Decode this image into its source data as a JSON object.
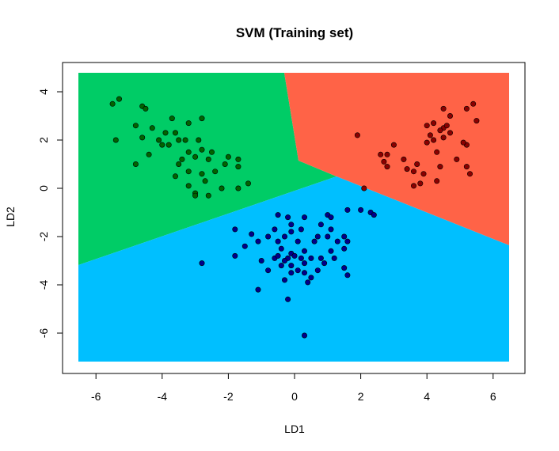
{
  "chart_data": {
    "type": "scatter",
    "title": "SVM (Training set)",
    "xlabel": "LD1",
    "ylabel": "LD2",
    "xlim": [
      -6.5,
      6.5
    ],
    "ylim": [
      -7.2,
      4.75
    ],
    "xticks": [
      -6,
      -4,
      -2,
      0,
      2,
      4,
      6
    ],
    "yticks": [
      4,
      2,
      0,
      -2,
      -4,
      -6
    ],
    "tick_labels_x": [
      "-6",
      "-4",
      "-2",
      "0",
      "2",
      "4",
      "6"
    ],
    "tick_labels_y": [
      "4",
      "2",
      "0",
      "-2",
      "-4",
      "-6"
    ],
    "grid": false,
    "regions": [
      {
        "class": "green",
        "color": "#00CC66"
      },
      {
        "class": "red",
        "color": "#FF6347"
      },
      {
        "class": "blue",
        "color": "#00BFFF"
      }
    ],
    "series": [
      {
        "class": "green",
        "color": "#006400",
        "points": [
          [
            -5.5,
            3.5
          ],
          [
            -5.3,
            3.7
          ],
          [
            -4.6,
            3.4
          ],
          [
            -4.5,
            3.3
          ],
          [
            -3.7,
            2.9
          ],
          [
            -2.8,
            2.9
          ],
          [
            -3.2,
            2.7
          ],
          [
            -4.8,
            2.6
          ],
          [
            -4.3,
            2.5
          ],
          [
            -3.9,
            2.3
          ],
          [
            -3.6,
            2.3
          ],
          [
            -5.4,
            2.0
          ],
          [
            -4.6,
            2.1
          ],
          [
            -4.1,
            2.0
          ],
          [
            -3.5,
            2.0
          ],
          [
            -3.3,
            2.0
          ],
          [
            -2.9,
            2.0
          ],
          [
            -4.0,
            1.8
          ],
          [
            -3.8,
            1.8
          ],
          [
            -3.2,
            1.5
          ],
          [
            -2.8,
            1.6
          ],
          [
            -2.5,
            1.5
          ],
          [
            -2.0,
            1.3
          ],
          [
            -4.4,
            1.4
          ],
          [
            -3.4,
            1.2
          ],
          [
            -3.0,
            1.3
          ],
          [
            -2.6,
            1.2
          ],
          [
            -1.7,
            1.2
          ],
          [
            -4.8,
            1.0
          ],
          [
            -3.5,
            1.0
          ],
          [
            -2.1,
            1.0
          ],
          [
            -1.7,
            0.9
          ],
          [
            -3.2,
            0.7
          ],
          [
            -2.8,
            0.6
          ],
          [
            -2.4,
            0.7
          ],
          [
            -3.6,
            0.5
          ],
          [
            -1.4,
            0.2
          ],
          [
            -2.7,
            0.3
          ],
          [
            -3.2,
            0.1
          ],
          [
            -1.7,
            0.0
          ],
          [
            -2.2,
            0.0
          ],
          [
            -3.0,
            -0.2
          ],
          [
            -2.6,
            -0.3
          ],
          [
            -3.0,
            -0.3
          ]
        ]
      },
      {
        "class": "red",
        "color": "#8B0000",
        "points": [
          [
            5.4,
            3.5
          ],
          [
            4.5,
            3.3
          ],
          [
            5.2,
            3.3
          ],
          [
            4.7,
            3.0
          ],
          [
            4.0,
            2.6
          ],
          [
            4.2,
            2.7
          ],
          [
            4.5,
            2.5
          ],
          [
            4.4,
            2.4
          ],
          [
            4.6,
            2.6
          ],
          [
            5.5,
            2.8
          ],
          [
            4.1,
            2.2
          ],
          [
            4.5,
            2.1
          ],
          [
            4.2,
            2.0
          ],
          [
            1.9,
            2.2
          ],
          [
            4.7,
            2.3
          ],
          [
            4.0,
            1.9
          ],
          [
            3.0,
            1.8
          ],
          [
            5.2,
            1.8
          ],
          [
            5.1,
            1.9
          ],
          [
            4.3,
            1.5
          ],
          [
            2.6,
            1.4
          ],
          [
            2.8,
            1.4
          ],
          [
            3.3,
            1.2
          ],
          [
            4.9,
            1.2
          ],
          [
            2.7,
            1.1
          ],
          [
            3.7,
            1.0
          ],
          [
            2.8,
            0.9
          ],
          [
            4.4,
            0.9
          ],
          [
            3.4,
            0.8
          ],
          [
            5.2,
            0.9
          ],
          [
            3.6,
            0.7
          ],
          [
            3.9,
            0.6
          ],
          [
            5.3,
            0.6
          ],
          [
            4.3,
            0.3
          ],
          [
            3.8,
            0.2
          ],
          [
            3.6,
            0.1
          ],
          [
            2.1,
            0.0
          ]
        ]
      },
      {
        "class": "blue",
        "color": "#00008B",
        "points": [
          [
            -0.5,
            -1.1
          ],
          [
            -0.2,
            -1.2
          ],
          [
            0.3,
            -1.2
          ],
          [
            1.0,
            -1.1
          ],
          [
            1.1,
            -1.2
          ],
          [
            1.6,
            -0.9
          ],
          [
            2.0,
            -0.9
          ],
          [
            2.3,
            -1.0
          ],
          [
            2.4,
            -1.1
          ],
          [
            -0.1,
            -1.5
          ],
          [
            0.8,
            -1.5
          ],
          [
            -0.6,
            -1.7
          ],
          [
            -0.1,
            -1.8
          ],
          [
            -1.8,
            -1.7
          ],
          [
            0.2,
            -1.7
          ],
          [
            1.1,
            -1.7
          ],
          [
            -1.3,
            -1.9
          ],
          [
            -0.8,
            -2.0
          ],
          [
            -0.3,
            -2.0
          ],
          [
            0.7,
            -2.0
          ],
          [
            1.0,
            -2.0
          ],
          [
            1.5,
            -2.0
          ],
          [
            -1.1,
            -2.2
          ],
          [
            -0.5,
            -2.2
          ],
          [
            0.1,
            -2.2
          ],
          [
            0.6,
            -2.2
          ],
          [
            1.3,
            -2.2
          ],
          [
            1.6,
            -2.2
          ],
          [
            -1.5,
            -2.4
          ],
          [
            -0.4,
            -2.5
          ],
          [
            0.3,
            -2.6
          ],
          [
            1.1,
            -2.6
          ],
          [
            1.5,
            -2.5
          ],
          [
            -0.1,
            -2.7
          ],
          [
            0.0,
            -2.8
          ],
          [
            0.2,
            -2.9
          ],
          [
            -0.6,
            -2.9
          ],
          [
            -0.5,
            -2.8
          ],
          [
            -0.2,
            -2.9
          ],
          [
            0.5,
            -2.9
          ],
          [
            0.8,
            -2.9
          ],
          [
            1.2,
            -2.9
          ],
          [
            -1.8,
            -2.8
          ],
          [
            -1.0,
            -3.0
          ],
          [
            -0.3,
            -3.0
          ],
          [
            0.3,
            -3.1
          ],
          [
            0.9,
            -3.1
          ],
          [
            -0.4,
            -3.2
          ],
          [
            -0.1,
            -3.2
          ],
          [
            1.5,
            -3.3
          ],
          [
            -2.8,
            -3.1
          ],
          [
            -0.8,
            -3.4
          ],
          [
            -0.1,
            -3.5
          ],
          [
            0.1,
            -3.4
          ],
          [
            0.3,
            -3.5
          ],
          [
            0.7,
            -3.4
          ],
          [
            1.6,
            -3.6
          ],
          [
            0.5,
            -3.7
          ],
          [
            -0.3,
            -3.8
          ],
          [
            0.4,
            -3.9
          ],
          [
            -1.1,
            -4.2
          ],
          [
            -0.2,
            -4.6
          ],
          [
            0.3,
            -6.1
          ]
        ]
      }
    ]
  }
}
